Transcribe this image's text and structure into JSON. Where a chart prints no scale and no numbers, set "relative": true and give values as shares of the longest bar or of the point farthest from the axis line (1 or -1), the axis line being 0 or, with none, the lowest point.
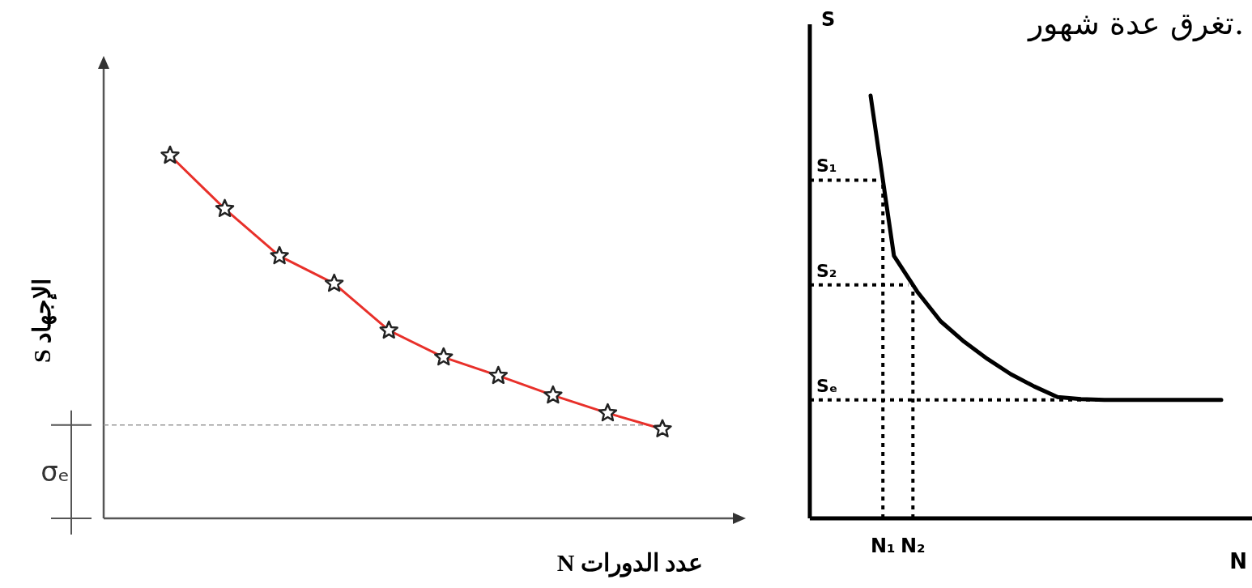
{
  "chart_data": [
    {
      "type": "line",
      "ylabel": "الإجهاد S",
      "xlabel": "عدد الدورات N",
      "relative": true,
      "categories": [
        null,
        null,
        null,
        null,
        null,
        null,
        null,
        null,
        null,
        null
      ],
      "marker": "star",
      "line_style": "solid",
      "series": [
        {
          "color": "#e8302a",
          "values": [
            1,
            0.853,
            0.723,
            0.647,
            0.518,
            0.444,
            0.393,
            0.339,
            0.29,
            0.246
          ]
        }
      ],
      "ref_lines": [
        {
          "axis": "y",
          "value": 0.257,
          "label": "σₑ",
          "color": "#999999",
          "line_style": "dashed"
        }
      ]
    },
    {
      "type": "line",
      "ylabel": "S",
      "xlabel": "N",
      "relative": true,
      "categories": [
        null,
        null,
        null,
        null,
        null,
        null,
        null,
        null,
        null,
        null,
        null,
        null,
        null,
        null,
        null,
        null
      ],
      "line_style": "solid",
      "series": [
        {
          "color": "#000000",
          "values": [
            1,
            0.621,
            0.536,
            0.466,
            0.418,
            0.377,
            0.341,
            0.312,
            0.287,
            0.282,
            0.28,
            0.28,
            0.28,
            0.28,
            0.28,
            0.28
          ]
        }
      ],
      "ref_lines": [
        {
          "axis": "y",
          "value": 0.8,
          "label": "S₁",
          "color": "#000000",
          "line_style": "dotted"
        },
        {
          "axis": "y",
          "value": 0.552,
          "label": "S₂",
          "color": "#000000",
          "line_style": "dotted"
        },
        {
          "axis": "y",
          "value": 0.28,
          "label": "Sₑ",
          "color": "#000000",
          "line_style": "dotted"
        }
      ],
      "annotations": [
        "N₁",
        "N₂",
        "تغرق عدة شهور."
      ]
    }
  ]
}
